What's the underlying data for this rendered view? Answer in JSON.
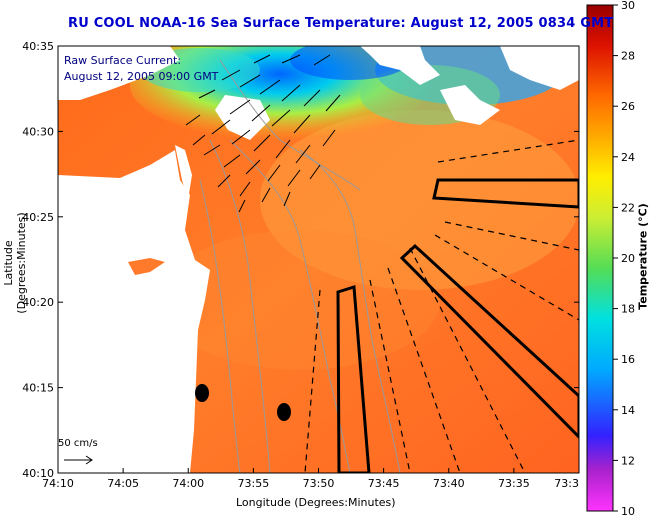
{
  "title": "RU COOL  NOAA-16  Sea Surface Temperature:  August 12, 2005 0834 GMT",
  "axes": {
    "ylabel": "Latitude (Degrees:Minutes)",
    "xlabel": "Longitude (Degrees:Minutes)",
    "y_ticks": [
      "40:35",
      "40:30",
      "40:25",
      "40:20",
      "40:15",
      "40:10"
    ],
    "x_ticks": [
      "74:10",
      "74:05",
      "74:00",
      "73:55",
      "73:50",
      "73:45",
      "73:40",
      "73:35",
      "73:3"
    ]
  },
  "legend": {
    "line1": "Raw Surface Current:",
    "line2": "August 12, 2005 09:00 GMT",
    "scale": "50 cm/s"
  },
  "colorbar": {
    "label": "Temperature (°C)",
    "ticks": [
      "30",
      "28",
      "26",
      "24",
      "22",
      "20",
      "18",
      "16",
      "14",
      "12",
      "10"
    ],
    "colors": [
      "#ff33ff",
      "#aa22cc",
      "#3322ff",
      "#00aaff",
      "#00e0e0",
      "#55dd55",
      "#ccee33",
      "#ffee00",
      "#ffaa00",
      "#ff5500",
      "#dd1100",
      "#990000"
    ]
  },
  "colors": {
    "sea": "#ff7a2a",
    "land": "#ffffff",
    "cold": "#1aa0ff",
    "title": "#0000cc",
    "legend": "#000080"
  }
}
